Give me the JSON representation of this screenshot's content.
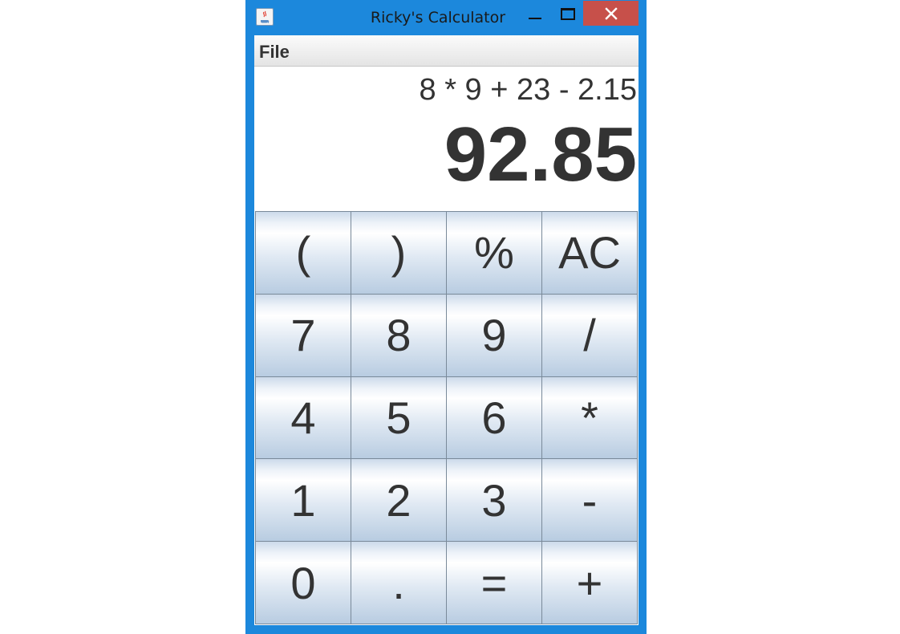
{
  "window": {
    "title": "Ricky's Calculator"
  },
  "menu": {
    "file_label": "File"
  },
  "display": {
    "expression": "8 * 9 + 23 - 2.15",
    "result": "92.85"
  },
  "keypad": {
    "keys": [
      "(",
      ")",
      "%",
      "AC",
      "7",
      "8",
      "9",
      "/",
      "4",
      "5",
      "6",
      "*",
      "1",
      "2",
      "3",
      "-",
      "0",
      ".",
      "=",
      "+"
    ]
  },
  "icons": {
    "app": "java-coffee-cup-icon",
    "minimize": "minimize-icon",
    "maximize": "maximize-icon",
    "close": "close-icon"
  },
  "colors": {
    "window_frame": "#1c88dc",
    "close_button": "#c7504a",
    "text": "#333333"
  }
}
